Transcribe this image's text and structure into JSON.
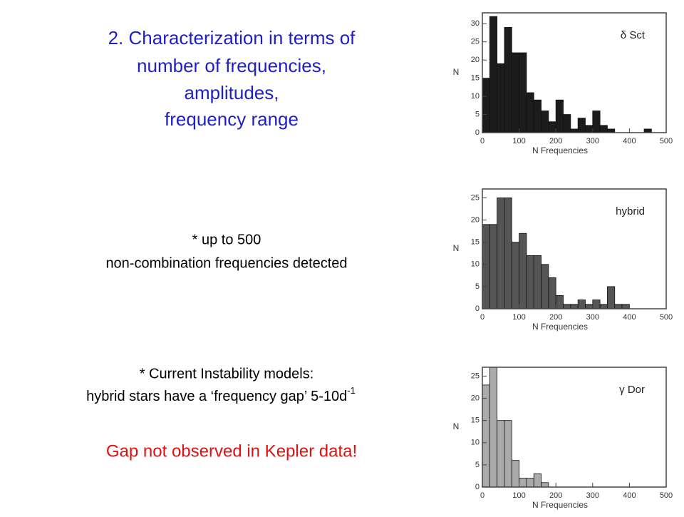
{
  "title_lines": [
    "2. Characterization in terms of",
    "number of frequencies,",
    "amplitudes,",
    "frequency range"
  ],
  "point_1": [
    "* up to 500",
    "non-combination frequencies detected"
  ],
  "point_2": {
    "line_1": "* Current Instability models:",
    "line_2": "hybrid stars have  a ‘frequency gap’  5-10d",
    "superscript": "-1"
  },
  "conclusion": "Gap not observed in Kepler data!",
  "chart_data": [
    {
      "type": "histogram",
      "label": "δ Sct",
      "xlabel": "N Frequencies",
      "ylabel": "N",
      "color": "#1c1c1c",
      "bins": [
        0,
        20,
        40,
        60,
        80,
        100,
        120,
        140,
        160,
        180,
        200,
        220,
        240,
        260,
        280,
        300,
        320,
        340,
        360,
        380,
        400,
        420,
        440,
        460,
        480
      ],
      "counts": [
        15,
        32,
        19,
        29,
        22,
        22,
        11,
        9,
        6,
        3,
        9,
        5,
        1,
        4,
        2,
        6,
        2,
        1,
        0,
        0,
        0,
        0,
        1,
        0
      ],
      "xlim": [
        0,
        500
      ],
      "xticks": [
        0,
        100,
        200,
        300,
        400,
        500
      ],
      "ylim": [
        0,
        33
      ],
      "yticks": [
        0,
        5,
        10,
        15,
        20,
        25,
        30
      ]
    },
    {
      "type": "histogram",
      "label": "hybrid",
      "xlabel": "N Frequencies",
      "ylabel": "N",
      "color": "#555555",
      "bins": [
        0,
        20,
        40,
        60,
        80,
        100,
        120,
        140,
        160,
        180,
        200,
        220,
        240,
        260,
        280,
        300,
        320,
        340,
        360,
        380,
        400
      ],
      "counts": [
        19,
        19,
        25,
        25,
        15,
        17,
        12,
        12,
        10,
        7,
        3,
        1,
        1,
        2,
        1,
        2,
        1,
        5,
        1,
        1
      ],
      "xlim": [
        0,
        500
      ],
      "xticks": [
        0,
        100,
        200,
        300,
        400,
        500
      ],
      "ylim": [
        0,
        27
      ],
      "yticks": [
        0,
        5,
        10,
        15,
        20,
        25
      ]
    },
    {
      "type": "histogram",
      "label": "γ Dor",
      "xlabel": "N Frequencies",
      "ylabel": "N",
      "color": "#aaaaaa",
      "bins": [
        0,
        20,
        40,
        60,
        80,
        100,
        120,
        140,
        160,
        180
      ],
      "counts": [
        23,
        27,
        15,
        15,
        6,
        2,
        2,
        3,
        1
      ],
      "xlim": [
        0,
        500
      ],
      "xticks": [
        0,
        100,
        200,
        300,
        400,
        500
      ],
      "ylim": [
        0,
        27
      ],
      "yticks": [
        0,
        5,
        10,
        15,
        20,
        25
      ]
    }
  ]
}
